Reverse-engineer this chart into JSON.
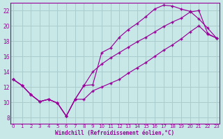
{
  "xlabel": "Windchill (Refroidissement éolien,°C)",
  "background_color": "#c8e8e8",
  "grid_color": "#aacccc",
  "line_color": "#990099",
  "xlim": [
    -0.3,
    23.3
  ],
  "ylim": [
    7.2,
    23.0
  ],
  "xticks": [
    0,
    1,
    2,
    3,
    4,
    5,
    6,
    7,
    8,
    9,
    10,
    11,
    12,
    13,
    14,
    15,
    16,
    17,
    18,
    19,
    20,
    21,
    22,
    23
  ],
  "yticks": [
    8,
    10,
    12,
    14,
    16,
    18,
    20,
    22
  ],
  "line_upper_x": [
    0,
    1,
    2,
    3,
    4,
    5,
    6,
    7,
    8,
    9,
    10,
    11,
    12,
    13,
    14,
    15,
    16,
    17,
    18,
    19,
    20,
    21,
    22,
    23
  ],
  "line_upper_y": [
    13.0,
    12.2,
    11.0,
    10.1,
    10.4,
    9.9,
    8.2,
    10.4,
    12.2,
    12.3,
    16.5,
    17.1,
    18.5,
    19.5,
    20.3,
    21.2,
    22.2,
    22.7,
    22.6,
    22.2,
    21.9,
    20.9,
    19.7,
    18.4
  ],
  "line_mid_x": [
    0,
    1,
    2,
    3,
    4,
    5,
    6,
    7,
    8,
    9,
    10,
    11,
    12,
    13,
    14,
    15,
    16,
    17,
    18,
    19,
    20,
    21,
    22,
    23
  ],
  "line_mid_y": [
    13.0,
    12.2,
    11.0,
    10.1,
    10.4,
    9.9,
    8.2,
    10.4,
    12.2,
    14.0,
    15.0,
    15.8,
    16.5,
    17.2,
    17.9,
    18.5,
    19.2,
    19.9,
    20.5,
    21.0,
    21.8,
    22.0,
    19.0,
    18.4
  ],
  "line_low_x": [
    0,
    1,
    2,
    3,
    4,
    5,
    6,
    7,
    8,
    9,
    10,
    11,
    12,
    13,
    14,
    15,
    16,
    17,
    18,
    19,
    20,
    21,
    22,
    23
  ],
  "line_low_y": [
    13.0,
    12.2,
    11.0,
    10.1,
    10.4,
    9.9,
    8.2,
    10.4,
    10.4,
    11.5,
    12.0,
    12.5,
    13.0,
    13.8,
    14.5,
    15.2,
    16.0,
    16.8,
    17.5,
    18.3,
    19.2,
    20.0,
    18.9,
    18.4
  ]
}
